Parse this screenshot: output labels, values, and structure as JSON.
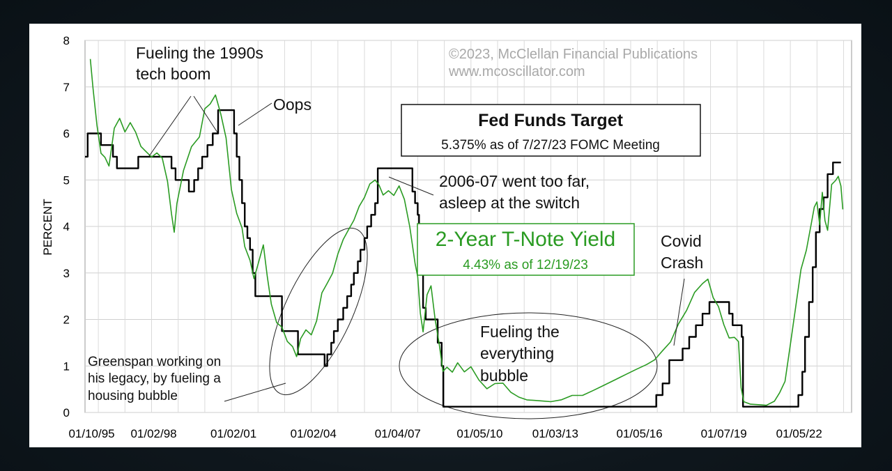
{
  "chart_data": {
    "type": "line",
    "ylabel": "PERCENT",
    "ylim": [
      0,
      8
    ],
    "y_ticks": [
      "0",
      "1",
      "2",
      "3",
      "4",
      "5",
      "6",
      "7",
      "8"
    ],
    "x_range": [
      1995.5,
      2024.3
    ],
    "x_ticks": [
      {
        "x": 1995.75,
        "label": "01/10/95"
      },
      {
        "x": 1998.08,
        "label": "01/02/98"
      },
      {
        "x": 2001.08,
        "label": "01/02/01"
      },
      {
        "x": 2004.08,
        "label": "01/02/04"
      },
      {
        "x": 2007.25,
        "label": "01/04/07"
      },
      {
        "x": 2010.33,
        "label": "01/05/10"
      },
      {
        "x": 2013.17,
        "label": "01/03/13"
      },
      {
        "x": 2016.33,
        "label": "01/05/16"
      },
      {
        "x": 2019.5,
        "label": "01/07/19"
      },
      {
        "x": 2022.33,
        "label": "01/05/22"
      }
    ],
    "grid": true,
    "series": [
      {
        "name": "Fed Funds Target",
        "color": "#000000",
        "shape": "step",
        "x": [
          1995.5,
          1995.6,
          1995.75,
          1996.1,
          1996.5,
          1996.55,
          1996.7,
          1997.2,
          1997.5,
          1998.6,
          1998.75,
          1998.9,
          1999.4,
          1999.6,
          1999.75,
          1999.9,
          2000.1,
          2000.3,
          2000.5,
          2000.95,
          2001.1,
          2001.2,
          2001.3,
          2001.4,
          2001.5,
          2001.6,
          2001.7,
          2001.8,
          2001.9,
          2002.9,
          2003.5,
          2004.5,
          2004.6,
          2004.75,
          2004.85,
          2005.0,
          2005.2,
          2005.35,
          2005.5,
          2005.6,
          2005.75,
          2005.85,
          2006.0,
          2006.1,
          2006.25,
          2006.4,
          2006.5,
          2007.7,
          2007.8,
          2007.9,
          2008.0,
          2008.05,
          2008.2,
          2008.3,
          2008.75,
          2008.9,
          2008.96,
          2015.96,
          2016.96,
          2017.2,
          2017.45,
          2017.95,
          2018.2,
          2018.45,
          2018.7,
          2018.96,
          2019.55,
          2019.7,
          2019.83,
          2020.17,
          2020.22,
          2022.2,
          2022.3,
          2022.45,
          2022.55,
          2022.7,
          2022.84,
          2022.96,
          2023.1,
          2023.25,
          2023.4,
          2023.6,
          2023.9
        ],
        "y": [
          5.5,
          6.0,
          6.0,
          5.75,
          5.75,
          5.5,
          5.25,
          5.25,
          5.5,
          5.5,
          5.25,
          5.0,
          4.75,
          5.0,
          5.25,
          5.5,
          5.75,
          6.0,
          6.5,
          6.5,
          6.0,
          5.5,
          5.0,
          4.5,
          4.0,
          3.75,
          3.5,
          3.0,
          2.5,
          1.75,
          1.25,
          1.0,
          1.25,
          1.5,
          1.75,
          2.0,
          2.25,
          2.5,
          2.75,
          3.0,
          3.25,
          3.5,
          3.75,
          4.0,
          4.25,
          4.5,
          5.25,
          5.25,
          4.75,
          4.5,
          4.25,
          3.5,
          2.25,
          2.0,
          1.5,
          1.0,
          0.125,
          0.125,
          0.375,
          0.625,
          1.125,
          1.375,
          1.625,
          1.875,
          2.125,
          2.375,
          2.375,
          2.125,
          1.875,
          1.625,
          0.125,
          0.125,
          0.375,
          0.875,
          1.625,
          2.375,
          3.125,
          3.875,
          4.375,
          4.625,
          5.125,
          5.375,
          5.375
        ]
      },
      {
        "name": "2-Year T-Note Yield",
        "color": "#2a9b22",
        "shape": "line",
        "x": [
          1995.7,
          1995.8,
          1995.95,
          1996.1,
          1996.25,
          1996.4,
          1996.6,
          1996.8,
          1997.0,
          1997.2,
          1997.4,
          1997.6,
          1997.8,
          1998.0,
          1998.2,
          1998.4,
          1998.6,
          1998.75,
          1998.85,
          1998.95,
          1999.2,
          1999.5,
          1999.8,
          2000.0,
          2000.2,
          2000.4,
          2000.6,
          2000.8,
          2001.0,
          2001.2,
          2001.4,
          2001.5,
          2001.7,
          2001.85,
          2002.0,
          2002.2,
          2002.35,
          2002.5,
          2002.7,
          2002.9,
          2003.1,
          2003.3,
          2003.45,
          2003.6,
          2003.8,
          2004.0,
          2004.2,
          2004.4,
          2004.6,
          2004.8,
          2005.0,
          2005.2,
          2005.4,
          2005.6,
          2005.8,
          2006.0,
          2006.2,
          2006.4,
          2006.55,
          2006.7,
          2006.9,
          2007.1,
          2007.3,
          2007.5,
          2007.7,
          2007.9,
          2008.0,
          2008.1,
          2008.2,
          2008.35,
          2008.5,
          2008.65,
          2008.8,
          2008.95,
          2009.1,
          2009.3,
          2009.5,
          2009.75,
          2010.0,
          2010.3,
          2010.6,
          2010.9,
          2011.2,
          2011.5,
          2011.8,
          2012.1,
          2012.4,
          2012.7,
          2013.0,
          2013.4,
          2013.8,
          2014.2,
          2014.6,
          2015.0,
          2015.4,
          2015.8,
          2016.2,
          2016.6,
          2016.9,
          2017.2,
          2017.5,
          2017.8,
          2018.1,
          2018.4,
          2018.7,
          2018.9,
          2019.1,
          2019.3,
          2019.5,
          2019.7,
          2019.9,
          2020.05,
          2020.15,
          2020.25,
          2020.5,
          2020.8,
          2021.1,
          2021.4,
          2021.6,
          2021.8,
          2022.0,
          2022.2,
          2022.4,
          2022.6,
          2022.8,
          2022.9,
          2023.0,
          2023.1,
          2023.2,
          2023.3,
          2023.4,
          2023.55,
          2023.7,
          2023.8,
          2023.9,
          2023.97
        ],
        "y": [
          7.6,
          7.0,
          6.2,
          5.6,
          5.5,
          5.3,
          6.1,
          6.3,
          6.0,
          6.2,
          6.0,
          5.7,
          5.6,
          5.5,
          5.6,
          5.5,
          5.0,
          4.3,
          3.9,
          4.5,
          5.2,
          5.7,
          5.9,
          6.5,
          6.6,
          6.8,
          6.4,
          5.9,
          4.8,
          4.3,
          4.0,
          3.6,
          3.3,
          2.9,
          3.2,
          3.6,
          2.9,
          2.3,
          1.9,
          1.8,
          1.5,
          1.4,
          1.2,
          1.6,
          1.8,
          1.7,
          2.0,
          2.6,
          2.8,
          3.0,
          3.4,
          3.7,
          3.9,
          4.1,
          4.4,
          4.6,
          4.9,
          5.0,
          4.9,
          4.7,
          4.8,
          4.7,
          4.9,
          4.6,
          4.0,
          3.2,
          2.9,
          2.1,
          1.7,
          2.5,
          2.7,
          2.0,
          1.5,
          0.9,
          1.0,
          0.9,
          1.1,
          0.9,
          1.0,
          0.7,
          0.5,
          0.6,
          0.6,
          0.4,
          0.3,
          0.25,
          0.25,
          0.25,
          0.25,
          0.3,
          0.4,
          0.4,
          0.5,
          0.6,
          0.7,
          0.8,
          0.9,
          1.0,
          1.1,
          1.3,
          1.5,
          1.9,
          2.2,
          2.6,
          2.8,
          2.9,
          2.5,
          2.3,
          1.9,
          1.6,
          1.6,
          1.5,
          0.5,
          0.2,
          0.15,
          0.15,
          0.15,
          0.25,
          0.45,
          0.7,
          1.5,
          2.3,
          3.1,
          3.5,
          4.1,
          4.4,
          4.5,
          4.0,
          4.7,
          4.1,
          3.9,
          4.9,
          5.0,
          5.1,
          4.9,
          4.4
        ]
      }
    ],
    "annotations": {
      "copyright_line1": "©2023, McClellan Financial Publications",
      "copyright_line2": "www.mcoscillator.com",
      "tech_boom_line1": "Fueling the 1990s",
      "tech_boom_line2": "tech boom",
      "oops": "Oops",
      "fed_box_title": "Fed Funds Target",
      "fed_box_sub": "5.375% as of 7/27/23 FOMC Meeting",
      "too_far_line1": "2006-07 went too far,",
      "too_far_line2": "asleep at the switch",
      "tnote_box_title": "2-Year T-Note Yield",
      "tnote_box_sub": "4.43% as of 12/19/23",
      "covid_line1": "Covid",
      "covid_line2": "Crash",
      "greenspan_line1": "Greenspan working on",
      "greenspan_line2": "his legacy, by fueling a",
      "greenspan_line3": "housing bubble",
      "everything_line1": "Fueling the",
      "everything_line2": "everything",
      "everything_line3": "bubble"
    }
  }
}
